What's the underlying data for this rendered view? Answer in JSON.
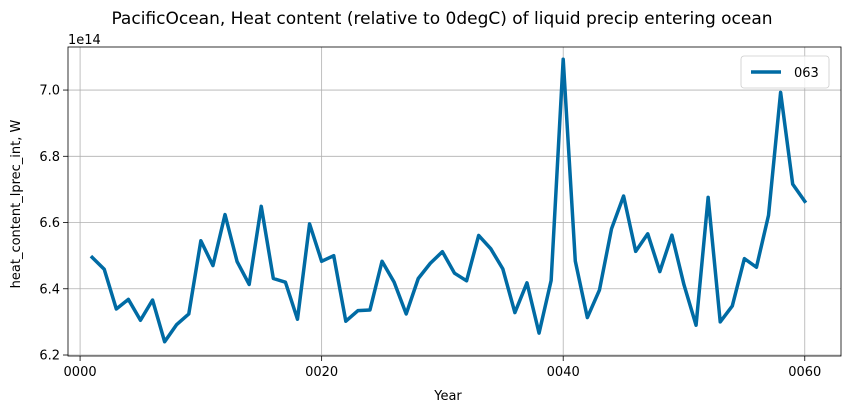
{
  "chart_data": {
    "type": "line",
    "title": "PacificOcean, Heat content (relative to 0degC) of liquid precip entering ocean",
    "xlabel": "Year",
    "ylabel": "heat_content_lprec_int, W",
    "offset_label": "1e14",
    "xlim": [
      -1,
      63
    ],
    "ylim": [
      6.197,
      7.13
    ],
    "x_ticks": [
      0,
      20,
      40,
      60
    ],
    "x_tick_labels": [
      "0000",
      "0020",
      "0040",
      "0060"
    ],
    "y_ticks": [
      6.2,
      6.4,
      6.6,
      6.8,
      7.0
    ],
    "y_tick_labels": [
      "6.2",
      "6.4",
      "6.6",
      "6.8",
      "7.0"
    ],
    "grid": true,
    "legend_position": "top-right",
    "colors": {
      "series": "#006ba4"
    },
    "series": [
      {
        "name": "063",
        "x": [
          1,
          2,
          3,
          4,
          5,
          6,
          7,
          8,
          9,
          10,
          11,
          12,
          13,
          14,
          15,
          16,
          17,
          18,
          19,
          20,
          21,
          22,
          23,
          24,
          25,
          26,
          27,
          28,
          29,
          30,
          31,
          32,
          33,
          34,
          35,
          36,
          37,
          38,
          39,
          40,
          41,
          42,
          43,
          44,
          45,
          46,
          47,
          48,
          49,
          50,
          51,
          52,
          53,
          54,
          55,
          56,
          57,
          58,
          59,
          60
        ],
        "values": [
          6.495,
          6.459,
          6.339,
          6.368,
          6.305,
          6.366,
          6.24,
          6.292,
          6.324,
          6.545,
          6.47,
          6.624,
          6.482,
          6.413,
          6.649,
          6.431,
          6.42,
          6.308,
          6.596,
          6.483,
          6.5,
          6.302,
          6.334,
          6.336,
          6.483,
          6.42,
          6.324,
          6.431,
          6.477,
          6.512,
          6.447,
          6.424,
          6.561,
          6.521,
          6.46,
          6.328,
          6.418,
          6.266,
          6.425,
          7.093,
          6.484,
          6.313,
          6.396,
          6.581,
          6.68,
          6.513,
          6.566,
          6.452,
          6.562,
          6.412,
          6.29,
          6.676,
          6.3,
          6.348,
          6.491,
          6.465,
          6.622,
          6.993,
          6.716,
          6.664
        ]
      }
    ]
  }
}
